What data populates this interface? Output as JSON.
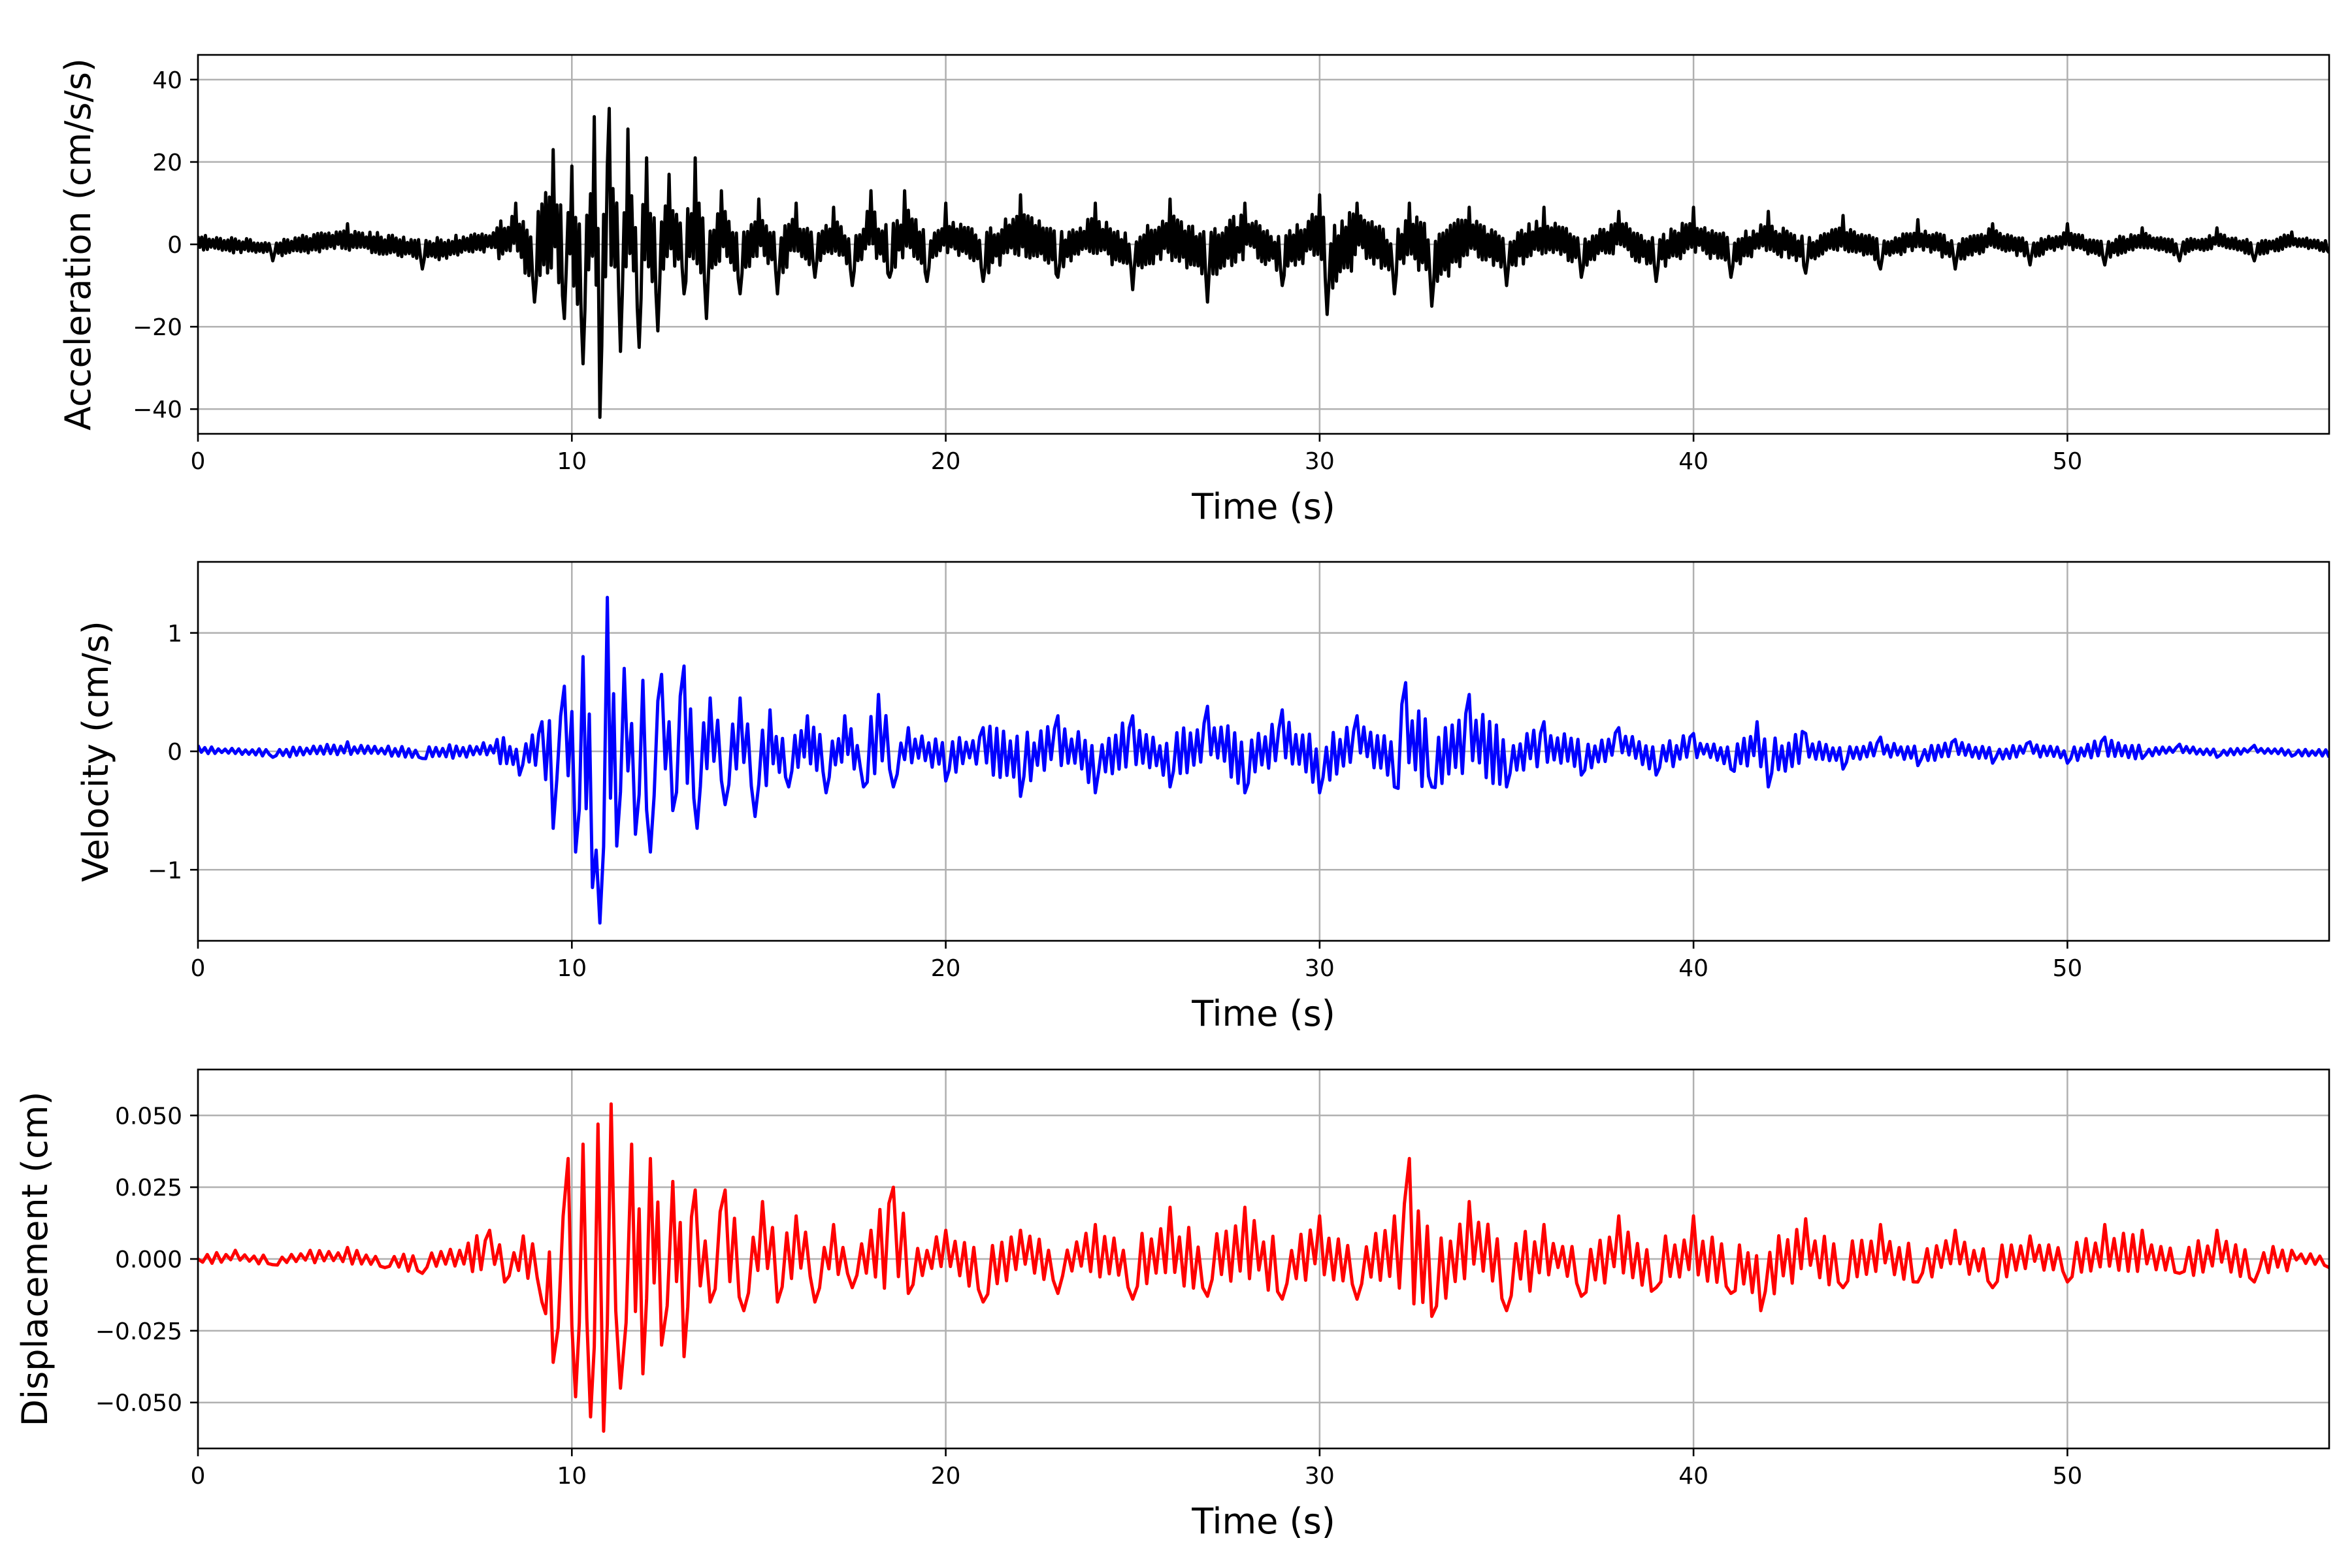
{
  "chart_data": [
    {
      "type": "line",
      "title": "",
      "xlabel": "Time (s)",
      "ylabel": "Acceleration (cm/s/s)",
      "xlim": [
        0,
        57
      ],
      "ylim": [
        -46,
        46
      ],
      "xticks": [
        0,
        10,
        20,
        30,
        40,
        50
      ],
      "xtick_labels": [
        "0",
        "10",
        "20",
        "30",
        "40",
        "50"
      ],
      "yticks": [
        -40,
        -20,
        0,
        20,
        40
      ],
      "ytick_labels": [
        "−40",
        "−20",
        "0",
        "20",
        "40"
      ],
      "grid": true,
      "color": "#000000",
      "series": [
        {
          "x": [
            0,
            2,
            4,
            6,
            8,
            8.5,
            9,
            9.5,
            9.8,
            10.0,
            10.3,
            10.6,
            10.75,
            11.0,
            11.3,
            11.5,
            11.8,
            12.0,
            12.3,
            12.6,
            13.0,
            13.3,
            13.6,
            14.0,
            14.5,
            15.0,
            15.5,
            16.0,
            16.5,
            17.0,
            17.5,
            18.0,
            18.5,
            18.9,
            19.5,
            20.0,
            21.0,
            22.0,
            23.0,
            24.0,
            25.0,
            26.0,
            27.0,
            28.0,
            29.0,
            30.0,
            30.2,
            31.0,
            32.0,
            32.4,
            33.0,
            34.0,
            35.0,
            36.0,
            37.0,
            38.0,
            39.0,
            40.0,
            41.0,
            42.0,
            43.0,
            44.0,
            45.0,
            46.0,
            47.0,
            48.0,
            49.0,
            50.0,
            51.0,
            52.0,
            53.0,
            54.0,
            55.0,
            56.0,
            57.0
          ],
          "y": [
            2,
            -4,
            5,
            -6,
            4,
            10,
            -14,
            23,
            -18,
            19,
            -29,
            31,
            -42,
            33,
            -26,
            28,
            -25,
            21,
            -21,
            17,
            -12,
            21,
            -18,
            13,
            -12,
            11,
            -12,
            10,
            -8,
            9,
            -10,
            13,
            -8,
            13,
            -9,
            10,
            -9,
            12,
            -8,
            10,
            -11,
            11,
            -14,
            10,
            -10,
            12,
            -17,
            10,
            -12,
            10,
            -15,
            9,
            -10,
            9,
            -8,
            8,
            -9,
            9,
            -8,
            8,
            -7,
            7,
            -6,
            6,
            -6,
            5,
            -5,
            5,
            -5,
            4,
            -4,
            4,
            -4,
            3,
            -2
          ]
        }
      ]
    },
    {
      "type": "line",
      "title": "",
      "xlabel": "Time (s)",
      "ylabel": "Velocity (cm/s)",
      "xlim": [
        0,
        57
      ],
      "ylim": [
        -1.6,
        1.6
      ],
      "xticks": [
        0,
        10,
        20,
        30,
        40,
        50
      ],
      "xtick_labels": [
        "0",
        "10",
        "20",
        "30",
        "40",
        "50"
      ],
      "yticks": [
        -1,
        0,
        1
      ],
      "ytick_labels": [
        "−1",
        "0",
        "1"
      ],
      "grid": true,
      "color": "#0000ff",
      "series": [
        {
          "x": [
            0,
            2,
            4,
            6,
            8,
            8.6,
            9.2,
            9.5,
            9.8,
            10.1,
            10.3,
            10.55,
            10.75,
            10.95,
            11.2,
            11.4,
            11.7,
            11.9,
            12.1,
            12.4,
            12.7,
            13.0,
            13.35,
            13.7,
            14.1,
            14.5,
            14.9,
            15.3,
            15.8,
            16.3,
            16.8,
            17.3,
            17.8,
            18.2,
            18.6,
            19.0,
            20.0,
            21.0,
            22.0,
            23.0,
            24.0,
            25.0,
            26.0,
            27.0,
            28.0,
            29.0,
            30.0,
            31.0,
            32.0,
            32.3,
            33.0,
            34.0,
            35.0,
            36.0,
            37.0,
            38.0,
            39.0,
            40.0,
            41.0,
            41.7,
            42.0,
            43.0,
            44.0,
            45.0,
            46.0,
            47.0,
            48.0,
            49.0,
            50.0,
            51.0,
            52.0,
            53.0,
            54.0,
            55.0,
            56.0,
            57.0
          ],
          "y": [
            0.05,
            -0.05,
            0.08,
            -0.06,
            0.1,
            -0.2,
            0.25,
            -0.65,
            0.55,
            -0.85,
            0.8,
            -1.15,
            -1.45,
            1.3,
            -0.8,
            0.7,
            -0.7,
            0.6,
            -0.85,
            0.65,
            -0.5,
            0.72,
            -0.65,
            0.45,
            -0.45,
            0.45,
            -0.55,
            0.35,
            -0.3,
            0.3,
            -0.35,
            0.3,
            -0.3,
            0.48,
            -0.3,
            0.2,
            -0.25,
            0.2,
            -0.38,
            0.3,
            -0.35,
            0.3,
            -0.3,
            0.38,
            -0.35,
            0.35,
            -0.35,
            0.3,
            -0.3,
            0.58,
            -0.3,
            0.48,
            -0.3,
            0.25,
            -0.2,
            0.2,
            -0.2,
            0.15,
            -0.15,
            0.25,
            -0.3,
            0.15,
            -0.15,
            0.12,
            -0.12,
            0.1,
            -0.1,
            0.08,
            -0.1,
            0.12,
            -0.06,
            0.06,
            -0.05,
            0.05,
            -0.04,
            -0.05
          ]
        }
      ]
    },
    {
      "type": "line",
      "title": "",
      "xlabel": "Time (s)",
      "ylabel": "Displacement (cm)",
      "xlim": [
        0,
        57
      ],
      "ylim": [
        -0.066,
        0.066
      ],
      "xticks": [
        0,
        10,
        20,
        30,
        40,
        50
      ],
      "xtick_labels": [
        "0",
        "10",
        "20",
        "30",
        "40",
        "50"
      ],
      "yticks": [
        -0.05,
        -0.025,
        0.0,
        0.025,
        0.05
      ],
      "ytick_labels": [
        "−0.050",
        "−0.025",
        "0.000",
        "0.025",
        "0.050"
      ],
      "grid": true,
      "color": "#ff0000",
      "series": [
        {
          "x": [
            0,
            1,
            2,
            3,
            4,
            5,
            6,
            7,
            7.8,
            8.2,
            8.7,
            9.2,
            9.5,
            9.9,
            10.1,
            10.3,
            10.5,
            10.7,
            10.85,
            11.05,
            11.3,
            11.6,
            11.9,
            12.1,
            12.4,
            12.7,
            13.0,
            13.3,
            13.7,
            14.1,
            14.6,
            15.1,
            15.5,
            16.0,
            16.5,
            17.0,
            17.5,
            18.0,
            18.6,
            19.0,
            20.0,
            21.0,
            22.0,
            23.0,
            24.0,
            25.0,
            26.0,
            27.0,
            28.0,
            29.0,
            30.0,
            31.0,
            32.0,
            32.4,
            33.0,
            34.0,
            35.0,
            36.0,
            37.0,
            38.0,
            39.0,
            40.0,
            41.0,
            41.8,
            43.0,
            44.0,
            45.0,
            46.0,
            47.0,
            48.0,
            49.0,
            50.0,
            51.0,
            52.0,
            53.0,
            54.0,
            55.0,
            56.0,
            57.0
          ],
          "y": [
            0.0,
            0.003,
            -0.002,
            0.003,
            0.004,
            -0.003,
            -0.005,
            0.003,
            0.01,
            -0.008,
            0.008,
            -0.015,
            -0.036,
            0.035,
            -0.048,
            0.04,
            -0.055,
            0.047,
            -0.06,
            0.054,
            -0.045,
            0.04,
            -0.04,
            0.035,
            -0.03,
            0.027,
            -0.034,
            0.024,
            -0.015,
            0.024,
            -0.018,
            0.02,
            -0.015,
            0.015,
            -0.015,
            0.012,
            -0.01,
            0.01,
            0.025,
            -0.012,
            0.01,
            -0.015,
            0.01,
            -0.012,
            0.012,
            -0.014,
            0.018,
            -0.013,
            0.018,
            -0.014,
            0.015,
            -0.014,
            0.015,
            0.035,
            -0.02,
            0.02,
            -0.018,
            0.012,
            -0.013,
            0.015,
            -0.01,
            0.015,
            -0.012,
            -0.018,
            0.014,
            -0.01,
            0.012,
            -0.008,
            0.01,
            -0.01,
            0.008,
            -0.008,
            0.012,
            0.01,
            -0.005,
            0.01,
            -0.008,
            0.003,
            -0.003
          ]
        }
      ]
    }
  ]
}
